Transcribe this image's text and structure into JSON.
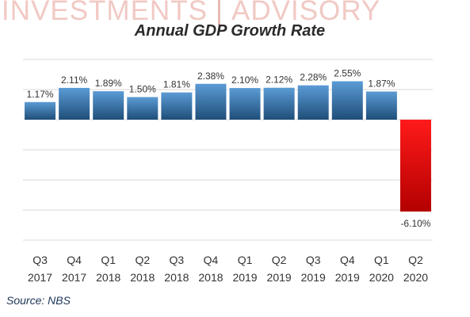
{
  "watermark": {
    "left": "INVESTMENTS",
    "right": "ADVISORY"
  },
  "chart_data": {
    "type": "bar",
    "title": "Annual GDP Growth Rate",
    "categories": [
      [
        "Q3",
        "2017"
      ],
      [
        "Q4",
        "2017"
      ],
      [
        "Q1",
        "2018"
      ],
      [
        "Q2",
        "2018"
      ],
      [
        "Q3",
        "2018"
      ],
      [
        "Q4",
        "2018"
      ],
      [
        "Q1",
        "2019"
      ],
      [
        "Q2",
        "2019"
      ],
      [
        "Q3",
        "2019"
      ],
      [
        "Q4",
        "2019"
      ],
      [
        "Q1",
        "2020"
      ],
      [
        "Q2",
        "2020"
      ]
    ],
    "values": [
      1.17,
      2.11,
      1.89,
      1.5,
      1.81,
      2.38,
      2.1,
      2.12,
      2.28,
      2.55,
      1.87,
      -6.1
    ],
    "data_labels": [
      "1.17%",
      "2.11%",
      "1.89%",
      "1.50%",
      "1.81%",
      "2.38%",
      "2.10%",
      "2.12%",
      "2.28%",
      "2.55%",
      "1.87%",
      "-6.10%"
    ],
    "ylim": [
      -8,
      4
    ],
    "grid": true,
    "colors": {
      "positive_top": "#5b9bd5",
      "positive_bottom": "#1f4e79",
      "negative_top": "#ff1a1a",
      "negative_bottom": "#b30000",
      "grid": "#d9d9d9"
    }
  },
  "source": "Source: NBS"
}
